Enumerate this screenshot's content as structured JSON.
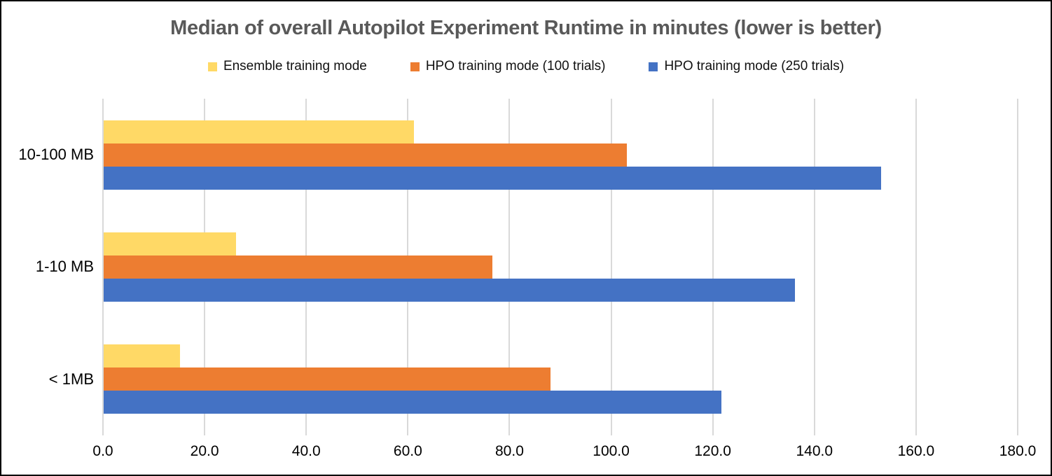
{
  "title": "Median of overall Autopilot Experiment Runtime in minutes (lower is better)",
  "legend": {
    "items": [
      {
        "label": "Ensemble training mode",
        "color": "#FFD966"
      },
      {
        "label": "HPO training mode (100 trials)",
        "color": "#ED7D31"
      },
      {
        "label": "HPO training mode (250 trials)",
        "color": "#4472C4"
      }
    ]
  },
  "chart_data": {
    "type": "bar",
    "orientation": "horizontal",
    "title": "Median of overall Autopilot Experiment Runtime in minutes (lower is better)",
    "categories": [
      "10-100 MB",
      "1-10 MB",
      "< 1MB"
    ],
    "series": [
      {
        "name": "Ensemble training mode",
        "color": "#FFD966",
        "values": [
          61,
          26,
          15
        ]
      },
      {
        "name": "HPO training mode (100 trials)",
        "color": "#ED7D31",
        "values": [
          103,
          76.5,
          88
        ]
      },
      {
        "name": "HPO training mode (250 trials)",
        "color": "#4472C4",
        "values": [
          153,
          136,
          121.5
        ]
      }
    ],
    "xlabel": "",
    "ylabel": "",
    "xlim": [
      0,
      180
    ],
    "x_tick_step": 20,
    "x_tick_labels": [
      "0.0",
      "20.0",
      "40.0",
      "60.0",
      "80.0",
      "100.0",
      "120.0",
      "140.0",
      "160.0",
      "180.0"
    ],
    "grid": true,
    "gridline_color": "#D9D9D9",
    "legend_position": "top",
    "value_unit": "minutes"
  }
}
